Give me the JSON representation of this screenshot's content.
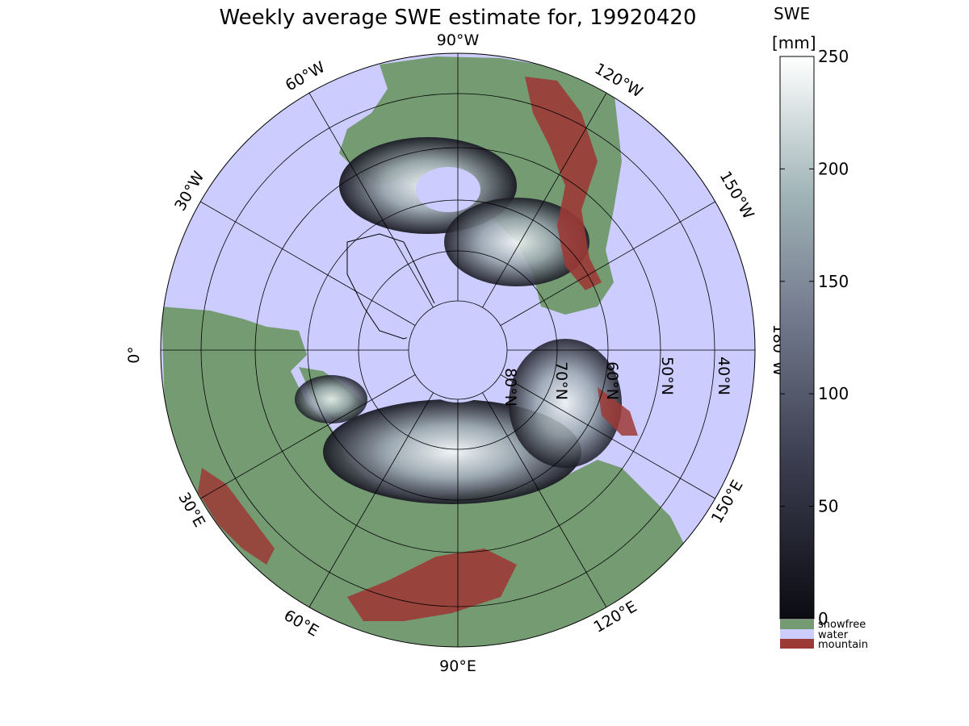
{
  "title": "Weekly average SWE estimate for, 19920420",
  "colorbar": {
    "title_line1": "SWE",
    "title_line2": "[mm]",
    "ticks": [
      "250",
      "200",
      "150",
      "100",
      "50",
      "0"
    ],
    "range": [
      0,
      250
    ],
    "colors": {
      "low": "#0b0b12",
      "mid": "#5f6478",
      "high_mid": "#9fb3b6",
      "high": "#ffffff"
    }
  },
  "legend": [
    {
      "label": "snowfree",
      "color": "#749b72"
    },
    {
      "label": "water",
      "color": "#ccccff"
    },
    {
      "label": "mountain",
      "color": "#9c3a36"
    }
  ],
  "longitude_labels": [
    "90°W",
    "120°W",
    "150°W",
    "180°W",
    "150°E",
    "120°E",
    "90°E",
    "60°E",
    "30°E",
    "0°",
    "30°W",
    "60°W"
  ],
  "latitude_labels": [
    "80°N",
    "70°N",
    "60°N",
    "50°N",
    "40°N"
  ],
  "colors": {
    "water": "#ccccff",
    "land": "#749b72",
    "mountain": "#9c3a36",
    "grid": "#000000"
  }
}
